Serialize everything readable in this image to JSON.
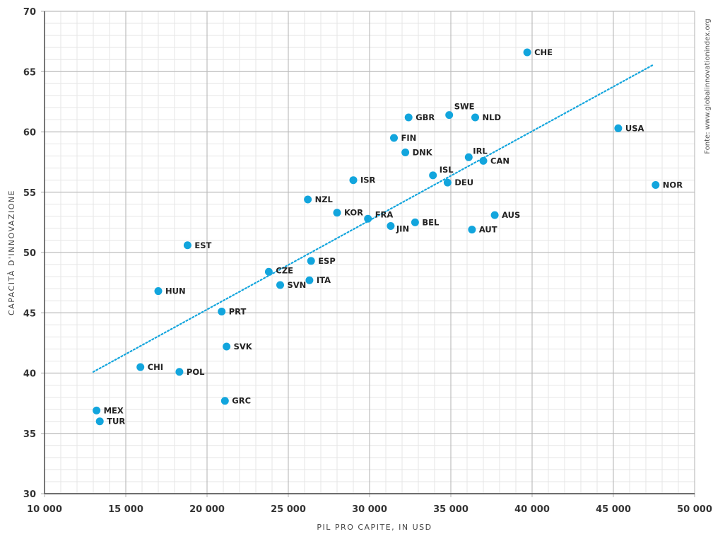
{
  "chart_data": {
    "type": "scatter",
    "title": "",
    "xlabel": "PIL PRO CAPITE, IN USD",
    "ylabel": "CAPACITÀ D'INNOVAZIONE",
    "source": "Fonte: www.globalinnovationindex.org",
    "xlim": [
      10000,
      50000
    ],
    "ylim": [
      30,
      70
    ],
    "xticks": [
      10000,
      15000,
      20000,
      25000,
      30000,
      35000,
      40000,
      45000,
      50000
    ],
    "xtick_labels": [
      "10 000",
      "15 000",
      "20 000",
      "25 000",
      "30 000",
      "35 000",
      "40 000",
      "45 000",
      "50 000"
    ],
    "yticks": [
      30,
      35,
      40,
      45,
      50,
      55,
      60,
      65,
      70
    ],
    "ytick_labels": [
      "30",
      "35",
      "40",
      "45",
      "50",
      "55",
      "60",
      "65",
      "70"
    ],
    "grid": true,
    "point_color": "#12a5dd",
    "trend_color": "#12a5dd",
    "trendline": {
      "x": [
        13000,
        47500
      ],
      "y": [
        40.1,
        65.6
      ]
    },
    "points": [
      {
        "label": "CHE",
        "x": 39700,
        "y": 66.6
      },
      {
        "label": "GBR",
        "x": 32400,
        "y": 61.2
      },
      {
        "label": "SWE",
        "x": 34900,
        "y": 61.4
      },
      {
        "label": "NLD",
        "x": 36500,
        "y": 61.2
      },
      {
        "label": "USA",
        "x": 45300,
        "y": 60.3
      },
      {
        "label": "FIN",
        "x": 31500,
        "y": 59.5
      },
      {
        "label": "DNK",
        "x": 32200,
        "y": 58.3
      },
      {
        "label": "IRL",
        "x": 36100,
        "y": 57.9
      },
      {
        "label": "CAN",
        "x": 37000,
        "y": 57.6
      },
      {
        "label": "ISR",
        "x": 29000,
        "y": 56.0
      },
      {
        "label": "ISL",
        "x": 33900,
        "y": 56.4
      },
      {
        "label": "DEU",
        "x": 34800,
        "y": 55.8
      },
      {
        "label": "NOR",
        "x": 47600,
        "y": 55.6
      },
      {
        "label": "NZL",
        "x": 26200,
        "y": 54.4
      },
      {
        "label": "KOR",
        "x": 28000,
        "y": 53.3
      },
      {
        "label": "FRA",
        "x": 29900,
        "y": 52.8
      },
      {
        "label": "JIN",
        "x": 31300,
        "y": 52.2
      },
      {
        "label": "BEL",
        "x": 32800,
        "y": 52.5
      },
      {
        "label": "AUS",
        "x": 37700,
        "y": 53.1
      },
      {
        "label": "AUT",
        "x": 36300,
        "y": 51.9
      },
      {
        "label": "EST",
        "x": 18800,
        "y": 50.6
      },
      {
        "label": "ESP",
        "x": 26400,
        "y": 49.3
      },
      {
        "label": "CZE",
        "x": 23800,
        "y": 48.4
      },
      {
        "label": "SVN",
        "x": 24500,
        "y": 47.3
      },
      {
        "label": "ITA",
        "x": 26300,
        "y": 47.7
      },
      {
        "label": "HUN",
        "x": 17000,
        "y": 46.8
      },
      {
        "label": "PRT",
        "x": 20900,
        "y": 45.1
      },
      {
        "label": "SVK",
        "x": 21200,
        "y": 42.2
      },
      {
        "label": "CHI",
        "x": 15900,
        "y": 40.5
      },
      {
        "label": "POL",
        "x": 18300,
        "y": 40.1
      },
      {
        "label": "GRC",
        "x": 21100,
        "y": 37.7
      },
      {
        "label": "MEX",
        "x": 13200,
        "y": 36.9
      },
      {
        "label": "TUR",
        "x": 13400,
        "y": 36.0
      }
    ]
  }
}
